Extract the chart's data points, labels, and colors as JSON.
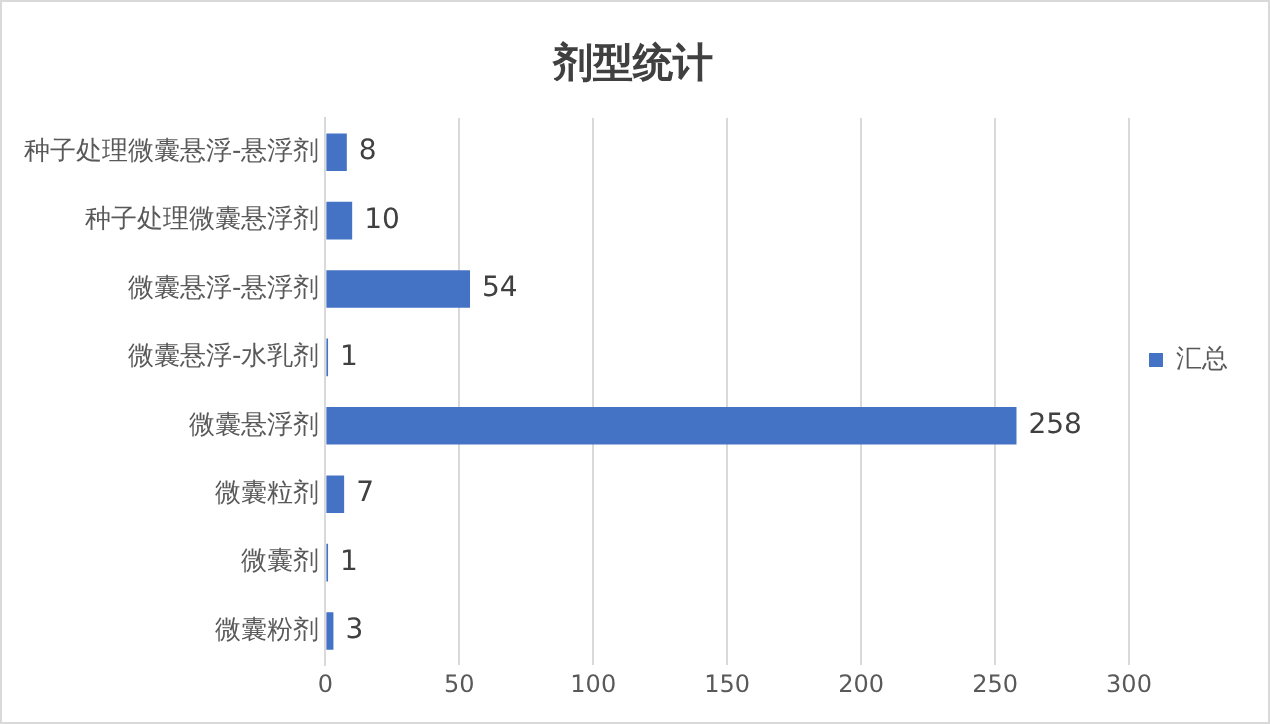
{
  "chart_data": {
    "type": "bar",
    "orientation": "horizontal",
    "title": "剂型统计",
    "categories": [
      "种子处理微囊悬浮-悬浮剂",
      "种子处理微囊悬浮剂",
      "微囊悬浮-悬浮剂",
      "微囊悬浮-水乳剂",
      "微囊悬浮剂",
      "微囊粒剂",
      "微囊剂",
      "微囊粉剂"
    ],
    "series": [
      {
        "name": "汇总",
        "color": "#4472c4",
        "values": [
          8,
          10,
          54,
          1,
          258,
          7,
          1,
          3
        ]
      }
    ],
    "xlim": [
      0,
      300
    ],
    "xticks": [
      0,
      50,
      100,
      150,
      200,
      250,
      300
    ],
    "grid": "x",
    "legend": "right",
    "data_labels": true
  }
}
